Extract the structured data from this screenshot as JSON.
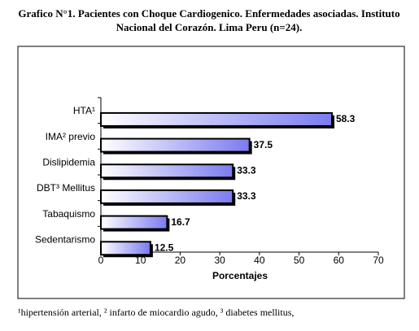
{
  "chart_data": {
    "type": "bar",
    "orientation": "horizontal",
    "title": [
      "Grafico N°1. Pacientes con Choque Cardiogenico. Enfermedades asociadas. Instituto",
      "Nacional del Corazón. Lima Peru (n=24)."
    ],
    "categories": [
      "HTA¹",
      "IMA²  previo",
      "Dislipidemia",
      "DBT³ Mellitus",
      "Tabaquismo",
      "Sedentarismo"
    ],
    "values": [
      58.3,
      37.5,
      33.3,
      33.3,
      16.7,
      12.5
    ],
    "color": "#7b7bf0",
    "xlabel": "Porcentajes",
    "xlim": [
      0,
      70
    ],
    "xticks": [
      0,
      10,
      20,
      30,
      40,
      50,
      60,
      70
    ],
    "footnote": "¹hipertensión arterial, ² infarto de miocardio agudo, ³ diabetes mellitus,"
  }
}
